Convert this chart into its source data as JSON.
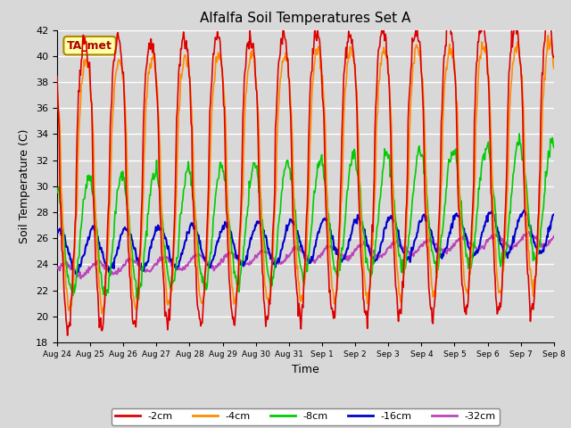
{
  "title": "Alfalfa Soil Temperatures Set A",
  "xlabel": "Time",
  "ylabel": "Soil Temperature (C)",
  "ylim": [
    18,
    42
  ],
  "xlim": [
    0,
    15
  ],
  "figsize": [
    6.4,
    4.8
  ],
  "dpi": 100,
  "background_color": "#d8d8d8",
  "plot_bg_color": "#d8d8d8",
  "grid_color": "#ffffff",
  "series": {
    "-2cm": {
      "color": "#dd0000"
    },
    "-4cm": {
      "color": "#ff8c00"
    },
    "-8cm": {
      "color": "#00cc00"
    },
    "-16cm": {
      "color": "#0000cc"
    },
    "-32cm": {
      "color": "#bb44bb"
    }
  },
  "annotation": {
    "text": "TA_met",
    "fontsize": 9,
    "color": "#aa0000",
    "bg": "#ffffaa",
    "border_color": "#aa8800"
  },
  "x_tick_labels": [
    "Aug 24",
    "Aug 25",
    "Aug 26",
    "Aug 27",
    "Aug 28",
    "Aug 29",
    "Aug 30",
    "Aug 31",
    "Sep 1",
    "Sep 2",
    "Sep 3",
    "Sep 4",
    "Sep 5",
    "Sep 6",
    "Sep 7",
    "Sep 8"
  ],
  "num_days": 15,
  "pts_per_day": 48,
  "linewidth": 1.2
}
